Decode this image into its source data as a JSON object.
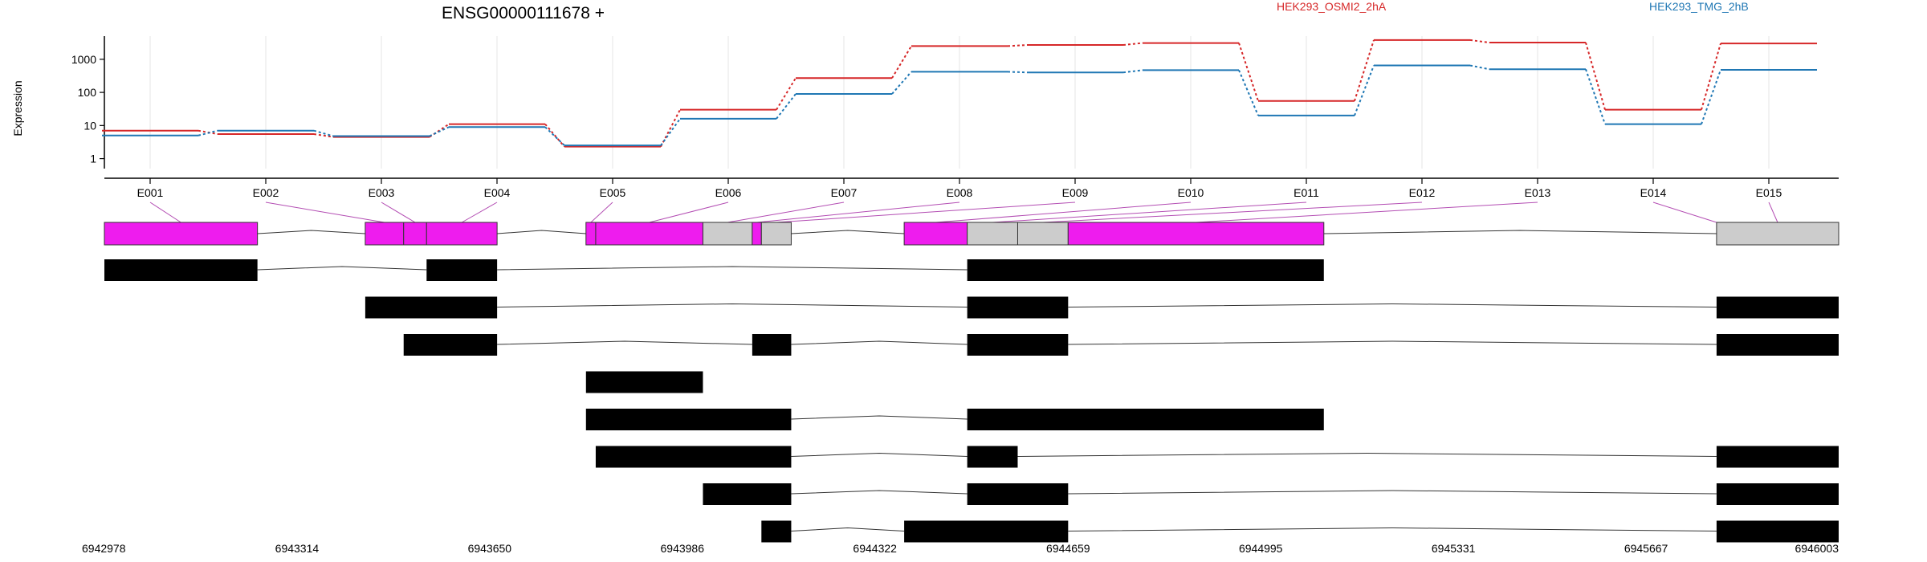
{
  "chart_data": {
    "type": "line",
    "title": "ENSG00000111678 +",
    "ylabel": "Expression",
    "yscale": "log",
    "ylim": [
      0.5,
      5000
    ],
    "y_ticks": [
      {
        "value": 1,
        "label": "1"
      },
      {
        "value": 10,
        "label": "10"
      },
      {
        "value": 100,
        "label": "100"
      },
      {
        "value": 1000,
        "label": "1000"
      }
    ],
    "categories": [
      "E001",
      "E002",
      "E003",
      "E004",
      "E005",
      "E006",
      "E007",
      "E008",
      "E009",
      "E010",
      "E011",
      "E012",
      "E013",
      "E014",
      "E015"
    ],
    "grid": "vertical",
    "legend_placement": "top",
    "series": [
      {
        "name": "HEK293_OSMI2_2hA",
        "color": "#d62728",
        "values": [
          7,
          5.5,
          4.5,
          11,
          2.3,
          30,
          270,
          2500,
          2700,
          3100,
          55,
          3800,
          3200,
          30,
          3000
        ]
      },
      {
        "name": "HEK293_TMG_2hB",
        "color": "#1f77b4",
        "values": [
          5,
          7,
          4.8,
          9,
          2.5,
          16,
          90,
          420,
          400,
          470,
          20,
          650,
          500,
          11,
          480
        ]
      }
    ],
    "exons": [
      {
        "id": "E001",
        "start": 6942978,
        "end": 6943245,
        "color": "#ee1cee"
      },
      {
        "id": "E002",
        "start": 6943433,
        "end": 6943500,
        "color": "#ee1cee"
      },
      {
        "id": "E003",
        "start": 6943500,
        "end": 6943540,
        "color": "#ee1cee"
      },
      {
        "id": "E004",
        "start": 6943540,
        "end": 6943663,
        "color": "#ee1cee"
      },
      {
        "id": "E005",
        "start": 6943818,
        "end": 6943835,
        "color": "#ee1cee"
      },
      {
        "id": "E006",
        "start": 6943835,
        "end": 6944022,
        "color": "#ee1cee"
      },
      {
        "id": "E007",
        "start": 6944022,
        "end": 6944108,
        "color": "#cccccc"
      },
      {
        "id": "E008",
        "start": 6944108,
        "end": 6944124,
        "color": "#ee1cee"
      },
      {
        "id": "E009",
        "start": 6944124,
        "end": 6944176,
        "color": "#cccccc"
      },
      {
        "id": "E010",
        "start": 6944373,
        "end": 6944483,
        "color": "#ee1cee"
      },
      {
        "id": "E011",
        "start": 6944483,
        "end": 6944571,
        "color": "#cccccc"
      },
      {
        "id": "E012",
        "start": 6944571,
        "end": 6944659,
        "color": "#cccccc"
      },
      {
        "id": "E013",
        "start": 6944659,
        "end": 6945105,
        "color": "#ee1cee"
      },
      {
        "id": "E014",
        "start": 6945790,
        "end": 6945790,
        "color": "#cccccc"
      },
      {
        "id": "E015",
        "start": 6945790,
        "end": 6946003,
        "color": "#cccccc"
      }
    ],
    "transcripts": [
      [
        [
          6942978,
          6943245
        ],
        [
          6943540,
          6943663
        ],
        [
          6944483,
          6945105
        ]
      ],
      [
        [
          6943433,
          6943663
        ],
        [
          6944483,
          6944659
        ],
        [
          6945790,
          6946003
        ]
      ],
      [
        [
          6943500,
          6943663
        ],
        [
          6944108,
          6944176
        ],
        [
          6944483,
          6944659
        ],
        [
          6945790,
          6946003
        ]
      ],
      [
        [
          6943818,
          6944022
        ]
      ],
      [
        [
          6943818,
          6944176
        ],
        [
          6944483,
          6945105
        ]
      ],
      [
        [
          6943835,
          6944176
        ],
        [
          6944483,
          6944571
        ],
        [
          6945790,
          6946003
        ]
      ],
      [
        [
          6944022,
          6944176
        ],
        [
          6944483,
          6944659
        ],
        [
          6945790,
          6946003
        ]
      ],
      [
        [
          6944124,
          6944176
        ],
        [
          6944373,
          6944659
        ],
        [
          6945790,
          6946003
        ]
      ]
    ],
    "x_ticks": [
      6942978,
      6943314,
      6943650,
      6943986,
      6944322,
      6944659,
      6944995,
      6945331,
      6945667,
      6946003
    ],
    "xlim": [
      6942978,
      6946003
    ]
  }
}
